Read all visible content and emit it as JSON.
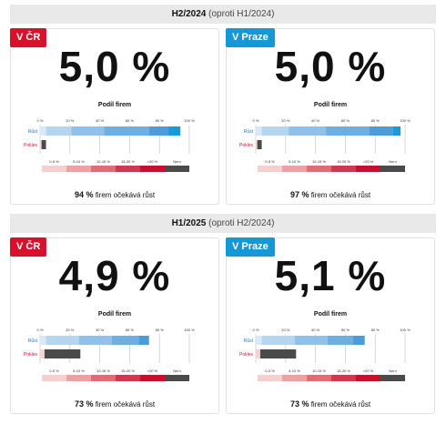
{
  "sections": [
    {
      "period": "H2/2024",
      "comparison": "(oproti H1/2024)",
      "panels": [
        {
          "badge": "V ČR",
          "badge_color": "#d8102b",
          "value": "5,0 %",
          "podil_label": "Podíl firem",
          "growth_pct": 94,
          "decline_pct": 4,
          "growth_share_label": "94 %",
          "growth_share_text": "firem očekává růst"
        },
        {
          "badge": "V Praze",
          "badge_color": "#1598d8",
          "value": "5,0 %",
          "podil_label": "Podíl firem",
          "growth_pct": 97,
          "decline_pct": 4,
          "growth_share_label": "97 %",
          "growth_share_text": "firem očekává růst"
        }
      ]
    },
    {
      "period": "H1/2025",
      "comparison": "(oproti H2/2024)",
      "panels": [
        {
          "badge": "V ČR",
          "badge_color": "#d8102b",
          "value": "4,9 %",
          "podil_label": "Podíl firem",
          "growth_pct": 73,
          "decline_pct": 27,
          "growth_share_label": "73 %",
          "growth_share_text": "firem očekává růst"
        },
        {
          "badge": "V Praze",
          "badge_color": "#1598d8",
          "value": "5,1 %",
          "podil_label": "Podíl firem",
          "growth_pct": 73,
          "decline_pct": 27,
          "growth_share_label": "73 %",
          "growth_share_text": "firem očekává růst"
        }
      ]
    }
  ],
  "chart_data": {
    "type": "bar",
    "orientation": "horizontal",
    "categories": [
      "Růst",
      "Pokles"
    ],
    "x_ticks": [
      "0 %",
      "20 %",
      "40 %",
      "60 %",
      "80 %",
      "100 %"
    ],
    "xlim": [
      0,
      100
    ],
    "legend_bins": [
      "0-5 %",
      "5-10 %",
      "10-15 %",
      "15-20 %",
      ">20 %",
      "Není"
    ],
    "bin_colors": [
      "#f6cfcf",
      "#eaa3a3",
      "#dc6f73",
      "#cf3950",
      "#c8102e",
      "#4a4a4a"
    ],
    "growth_colors": [
      "#d8e9f8",
      "#b6d5ef",
      "#91c1e8",
      "#6eaee0",
      "#4d9bd8",
      "#1a9ad8"
    ],
    "panels": [
      {
        "name": "H2/2024 V ČR",
        "growth": [
          4,
          17,
          22,
          30,
          13,
          8
        ],
        "decline": [
          1,
          3
        ]
      },
      {
        "name": "H2/2024 V Praze",
        "growth": [
          4,
          18,
          25,
          29,
          16,
          5
        ],
        "decline": [
          1,
          3
        ]
      },
      {
        "name": "H1/2025 V ČR",
        "growth": [
          4,
          22,
          22,
          18,
          7,
          0
        ],
        "decline": [
          3,
          24
        ]
      },
      {
        "name": "H1/2025 V Praze",
        "growth": [
          4,
          22,
          22,
          17,
          8,
          0
        ],
        "decline": [
          3,
          24
        ]
      }
    ]
  }
}
